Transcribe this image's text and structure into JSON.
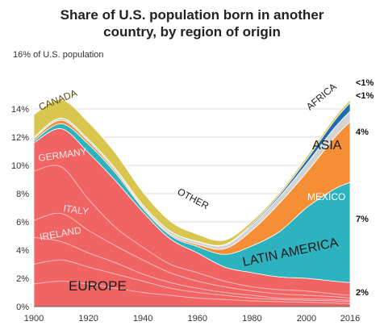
{
  "chart": {
    "title_line1": "Share of U.S. population born in another",
    "title_line2": "country, by region of origin",
    "y_unit_label": "16% of U.S. population"
  },
  "chart_data": {
    "type": "area",
    "stacked": true,
    "title": "Share of U.S. population born in another country, by region of origin",
    "ylabel": "16% of U.S. population",
    "xlim": [
      1900,
      2016
    ],
    "ylim": [
      0,
      16
    ],
    "x_ticks": [
      1900,
      1920,
      1940,
      1960,
      1980,
      2000,
      2016
    ],
    "y_ticks": [
      "0%",
      "2%",
      "4%",
      "6%",
      "8%",
      "10%",
      "12%",
      "14%"
    ],
    "y_tick_values": [
      0,
      2,
      4,
      6,
      8,
      10,
      12,
      14
    ],
    "x": [
      1900,
      1910,
      1920,
      1930,
      1940,
      1950,
      1960,
      1970,
      1980,
      1990,
      2000,
      2010,
      2016
    ],
    "series": [
      {
        "name": "Europe",
        "color": "#f06464",
        "values": [
          11.6,
          12.6,
          10.9,
          8.9,
          6.7,
          4.8,
          3.8,
          2.8,
          2.4,
          2.1,
          2.0,
          1.8,
          1.7
        ]
      },
      {
        "name": "Latin America",
        "color": "#2db3c0",
        "values": [
          0.15,
          0.35,
          0.6,
          0.55,
          0.25,
          0.25,
          0.45,
          0.9,
          1.9,
          3.2,
          5.0,
          6.5,
          7.1
        ]
      },
      {
        "name": "Asia",
        "color": "#f58e34",
        "values": [
          0.15,
          0.25,
          0.2,
          0.15,
          0.1,
          0.1,
          0.15,
          0.4,
          1.1,
          2.0,
          2.5,
          3.6,
          4.3
        ]
      },
      {
        "name": "Other",
        "color": "#d3d3d3",
        "values": [
          0.1,
          0.15,
          0.15,
          0.15,
          0.15,
          0.2,
          0.2,
          0.25,
          0.35,
          0.45,
          0.6,
          0.7,
          0.75
        ]
      },
      {
        "name": "Africa",
        "color": "#1f6bb0",
        "values": [
          0.0,
          0.0,
          0.0,
          0.0,
          0.0,
          0.0,
          0.02,
          0.05,
          0.1,
          0.15,
          0.3,
          0.5,
          0.6
        ]
      },
      {
        "name": "Canada",
        "color": "#d9c64e",
        "values": [
          1.6,
          1.3,
          1.2,
          1.1,
          0.9,
          0.7,
          0.5,
          0.3,
          0.2,
          0.15,
          0.2,
          0.2,
          0.2
        ]
      }
    ],
    "europe_sublines": [
      {
        "name": "Germany",
        "values": [
          9.6,
          9.9,
          7.6,
          5.6,
          4.2,
          3.0,
          2.4,
          1.8,
          1.4,
          1.2,
          1.1,
          0.9,
          0.8
        ]
      },
      {
        "name": "Italy",
        "values": [
          6.1,
          6.6,
          5.4,
          4.3,
          3.3,
          2.4,
          1.8,
          1.4,
          1.1,
          0.9,
          0.8,
          0.7,
          0.6
        ]
      },
      {
        "name": "Ireland",
        "values": [
          4.9,
          4.6,
          3.8,
          3.1,
          2.3,
          1.7,
          1.3,
          1.0,
          0.8,
          0.6,
          0.55,
          0.5,
          0.45
        ]
      },
      {
        "name": "",
        "values": [
          3.0,
          3.3,
          2.8,
          2.3,
          1.8,
          1.3,
          1.0,
          0.8,
          0.6,
          0.5,
          0.45,
          0.4,
          0.35
        ]
      },
      {
        "name": "",
        "values": [
          1.6,
          1.8,
          1.6,
          1.3,
          1.0,
          0.8,
          0.6,
          0.5,
          0.4,
          0.35,
          0.3,
          0.25,
          0.2
        ]
      }
    ],
    "region_labels": {
      "canada": "CANADA",
      "germany": "GERMANY",
      "italy": "ITALY",
      "ireland": "IRELAND",
      "europe": "EUROPE",
      "other": "OTHER",
      "latin_america": "LATIN AMERICA",
      "mexico": "MEXICO",
      "asia": "ASIA",
      "africa": "AFRICA"
    },
    "end_labels": {
      "canada": "<1%",
      "africa": "<1%",
      "asia": "4%",
      "latin_america": "7%",
      "europe": "2%"
    }
  }
}
